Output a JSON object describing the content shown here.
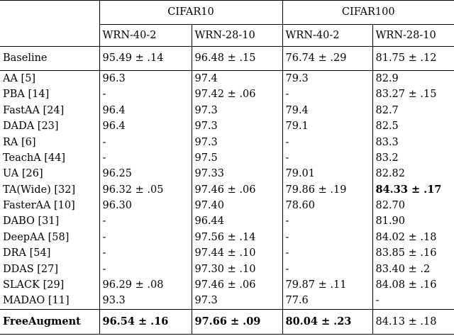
{
  "header": {
    "groups": [
      "CIFAR10",
      "CIFAR100"
    ],
    "subcolumns": [
      "WRN-40-2",
      "WRN-28-10",
      "WRN-40-2",
      "WRN-28-10"
    ]
  },
  "baseline": {
    "name": "Baseline",
    "values": [
      "95.49 ± .14",
      "96.48 ± .15",
      "76.74 ± .29",
      "81.75 ± .12"
    ]
  },
  "rows": [
    {
      "name": "AA [5]",
      "values": [
        "96.3",
        "97.4",
        "79.3",
        "82.9"
      ]
    },
    {
      "name": "PBA [14]",
      "values": [
        "-",
        "97.42 ± .06",
        "-",
        "83.27 ± .15"
      ]
    },
    {
      "name": "FastAA [24]",
      "values": [
        "96.4",
        "97.3",
        "79.4",
        "82.7"
      ]
    },
    {
      "name": "DADA [23]",
      "values": [
        "96.4",
        "97.3",
        "79.1",
        "82.5"
      ]
    },
    {
      "name": "RA [6]",
      "values": [
        "-",
        "97.3",
        "-",
        "83.3"
      ]
    },
    {
      "name": "TeachA [44]",
      "values": [
        "-",
        "97.5",
        "-",
        "83.2"
      ]
    },
    {
      "name": "UA [26]",
      "values": [
        "96.25",
        "97.33",
        "79.01",
        "82.82"
      ]
    },
    {
      "name": "TA(Wide) [32]",
      "values": [
        "96.32 ± .05",
        "97.46 ± .06",
        "79.86 ± .19",
        "84.33 ± .17"
      ]
    },
    {
      "name": "FasterAA [10]",
      "values": [
        "96.30",
        "97.40",
        "78.60",
        "82.70"
      ]
    },
    {
      "name": "DABO [31]",
      "values": [
        "-",
        "96.44",
        "-",
        "81.90"
      ]
    },
    {
      "name": "DeepAA [58]",
      "values": [
        "-",
        "97.56 ± .14",
        "-",
        "84.02 ± .18"
      ]
    },
    {
      "name": "DRA [54]",
      "values": [
        "-",
        "97.44 ± .10",
        "-",
        "83.85 ± .16"
      ]
    },
    {
      "name": "DDAS [27]",
      "values": [
        "-",
        "97.30 ± .10",
        "-",
        "83.40 ± .2"
      ]
    },
    {
      "name": "SLACK [29]",
      "values": [
        "96.29 ± .08",
        "97.46 ± .06",
        "79.87 ± .11",
        "84.08 ± .16"
      ]
    },
    {
      "name": "MADAO [11]",
      "values": [
        "93.3",
        "97.3",
        "77.6",
        "-"
      ]
    }
  ],
  "final": {
    "name": "FreeAugment",
    "values": [
      "96.54 ± .16",
      "97.66 ± .09",
      "80.04 ± .23",
      "84.13 ± .18"
    ]
  }
}
